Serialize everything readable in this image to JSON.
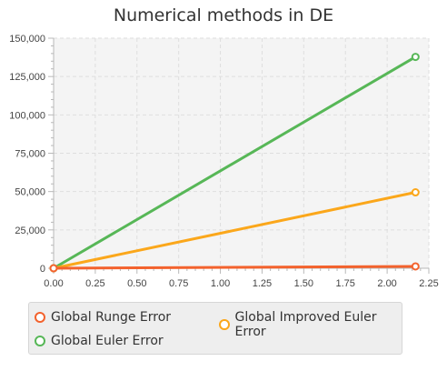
{
  "chart_data": {
    "type": "line",
    "title": "Numerical methods in DE",
    "xlabel": "",
    "ylabel": "",
    "xlim": [
      0,
      2.25
    ],
    "ylim": [
      0,
      150000
    ],
    "x_ticks": [
      "0.00",
      "0.25",
      "0.50",
      "0.75",
      "1.00",
      "1.25",
      "1.50",
      "1.75",
      "2.00",
      "2.25"
    ],
    "y_ticks": [
      "0",
      "25,000",
      "50,000",
      "75,000",
      "100,000",
      "125,000",
      "150,000"
    ],
    "x_tick_values": [
      0,
      0.25,
      0.5,
      0.75,
      1,
      1.25,
      1.5,
      1.75,
      2,
      2.25
    ],
    "y_tick_values": [
      0,
      25000,
      50000,
      75000,
      100000,
      125000,
      150000
    ],
    "grid": true,
    "legend_position": "bottom",
    "series": [
      {
        "name": "Global Runge Error",
        "color": "#f3622d",
        "x": [
          0,
          2.17
        ],
        "y": [
          0,
          1200
        ]
      },
      {
        "name": "Global Improved Euler Error",
        "color": "#fba71b",
        "x": [
          0,
          2.17
        ],
        "y": [
          0,
          49500
        ]
      },
      {
        "name": "Global Euler Error",
        "color": "#57b757",
        "x": [
          0,
          2.17
        ],
        "y": [
          0,
          137800
        ]
      }
    ]
  }
}
